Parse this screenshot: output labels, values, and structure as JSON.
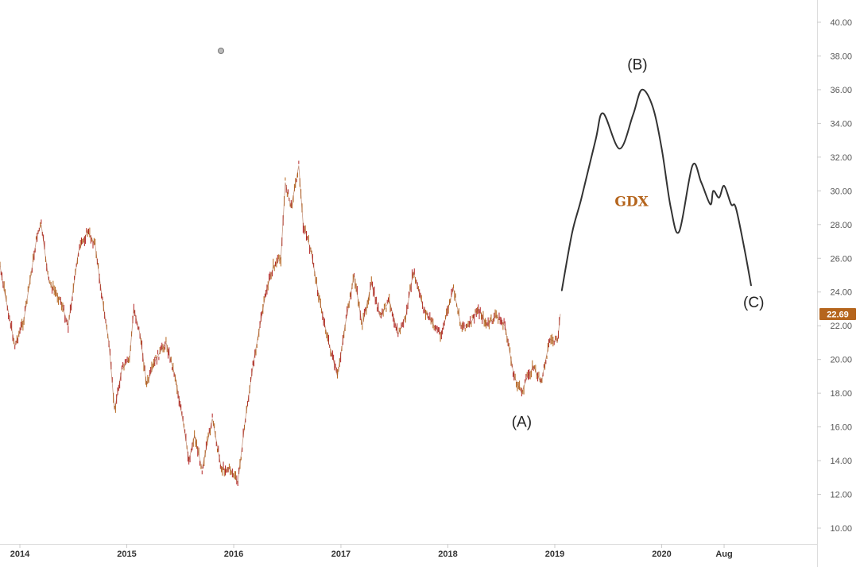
{
  "chart_data": {
    "type": "line",
    "symbol": "GDX",
    "y_axis": {
      "min": 10,
      "max": 40,
      "ticks": [
        "10.00",
        "12.00",
        "14.00",
        "16.00",
        "18.00",
        "20.00",
        "22.00",
        "24.00",
        "26.00",
        "28.00",
        "30.00",
        "32.00",
        "34.00",
        "36.00",
        "38.00",
        "40.00"
      ],
      "position": "right"
    },
    "x_axis": {
      "ticks": [
        {
          "label": "2014",
          "date": "2014-01-01"
        },
        {
          "label": "2015",
          "date": "2015-01-01"
        },
        {
          "label": "2016",
          "date": "2016-01-01"
        },
        {
          "label": "2017",
          "date": "2017-01-01"
        },
        {
          "label": "2018",
          "date": "2018-01-01"
        },
        {
          "label": "2019",
          "date": "2019-01-01"
        },
        {
          "label": "2020",
          "date": "2020-01-01"
        },
        {
          "label": "Aug",
          "date": "2020-08-01"
        }
      ]
    },
    "last_price": {
      "value": 22.69,
      "label": "22.69"
    },
    "grid": false,
    "series": [
      {
        "kind": "price",
        "color": "#b5651d",
        "points": [
          [
            "2013-10-15",
            26.8
          ],
          [
            "2013-11-01",
            24.8
          ],
          [
            "2013-12-15",
            20.8
          ],
          [
            "2014-01-15",
            22.4
          ],
          [
            "2014-03-01",
            27.4
          ],
          [
            "2014-03-15",
            28.0
          ],
          [
            "2014-04-10",
            24.6
          ],
          [
            "2014-05-20",
            23.5
          ],
          [
            "2014-06-15",
            22.0
          ],
          [
            "2014-07-20",
            26.4
          ],
          [
            "2014-08-20",
            27.6
          ],
          [
            "2014-09-15",
            26.8
          ],
          [
            "2014-10-10",
            23.5
          ],
          [
            "2014-11-01",
            21.0
          ],
          [
            "2014-11-20",
            17.0
          ],
          [
            "2014-12-15",
            19.4
          ],
          [
            "2015-01-10",
            20.0
          ],
          [
            "2015-01-25",
            23.0
          ],
          [
            "2015-02-15",
            21.5
          ],
          [
            "2015-03-10",
            18.5
          ],
          [
            "2015-04-10",
            20.0
          ],
          [
            "2015-05-15",
            21.0
          ],
          [
            "2015-06-15",
            19.0
          ],
          [
            "2015-07-15",
            16.0
          ],
          [
            "2015-08-01",
            14.0
          ],
          [
            "2015-08-20",
            15.5
          ],
          [
            "2015-09-15",
            13.5
          ],
          [
            "2015-10-20",
            16.5
          ],
          [
            "2015-11-20",
            13.5
          ],
          [
            "2015-12-20",
            13.5
          ],
          [
            "2016-01-15",
            12.7
          ],
          [
            "2016-02-10",
            16.5
          ],
          [
            "2016-03-10",
            20.0
          ],
          [
            "2016-04-20",
            24.0
          ],
          [
            "2016-05-15",
            25.5
          ],
          [
            "2016-06-10",
            26.0
          ],
          [
            "2016-06-25",
            30.5
          ],
          [
            "2016-07-15",
            29.0
          ],
          [
            "2016-08-10",
            31.5
          ],
          [
            "2016-08-25",
            28.0
          ],
          [
            "2016-09-20",
            26.5
          ],
          [
            "2016-10-20",
            23.5
          ],
          [
            "2016-11-20",
            21.0
          ],
          [
            "2016-12-20",
            19.0
          ],
          [
            "2017-01-15",
            22.0
          ],
          [
            "2017-02-15",
            25.0
          ],
          [
            "2017-03-15",
            22.0
          ],
          [
            "2017-04-15",
            24.5
          ],
          [
            "2017-05-15",
            22.5
          ],
          [
            "2017-06-15",
            23.5
          ],
          [
            "2017-07-15",
            21.5
          ],
          [
            "2017-08-10",
            22.5
          ],
          [
            "2017-09-05",
            25.2
          ],
          [
            "2017-10-10",
            23.0
          ],
          [
            "2017-11-15",
            22.0
          ],
          [
            "2017-12-10",
            21.5
          ],
          [
            "2018-01-20",
            24.2
          ],
          [
            "2018-02-15",
            22.0
          ],
          [
            "2018-03-15",
            22.0
          ],
          [
            "2018-04-15",
            23.0
          ],
          [
            "2018-05-15",
            22.0
          ],
          [
            "2018-06-15",
            22.6
          ],
          [
            "2018-07-15",
            22.0
          ],
          [
            "2018-08-15",
            19.0
          ],
          [
            "2018-09-10",
            18.0
          ],
          [
            "2018-09-25",
            18.8
          ],
          [
            "2018-10-20",
            19.6
          ],
          [
            "2018-11-15",
            18.6
          ],
          [
            "2018-12-15",
            21.2
          ],
          [
            "2019-01-10",
            21.0
          ],
          [
            "2019-01-20",
            22.7
          ]
        ]
      },
      {
        "kind": "projection",
        "color": "#333333",
        "points": [
          [
            "2019-01-25",
            24.1
          ],
          [
            "2019-03-01",
            27.5
          ],
          [
            "2019-04-01",
            29.5
          ],
          [
            "2019-05-20",
            33.0
          ],
          [
            "2019-06-15",
            34.6
          ],
          [
            "2019-08-10",
            32.5
          ],
          [
            "2019-09-25",
            34.5
          ],
          [
            "2019-10-25",
            36.0
          ],
          [
            "2019-12-01",
            35.0
          ],
          [
            "2020-01-01",
            32.5
          ],
          [
            "2020-02-01",
            29.0
          ],
          [
            "2020-03-01",
            27.6
          ],
          [
            "2020-04-15",
            31.5
          ],
          [
            "2020-05-15",
            30.5
          ],
          [
            "2020-06-15",
            29.2
          ],
          [
            "2020-06-25",
            30.0
          ],
          [
            "2020-07-15",
            29.6
          ],
          [
            "2020-08-01",
            30.3
          ],
          [
            "2020-08-25",
            29.2
          ],
          [
            "2020-09-10",
            29.0
          ],
          [
            "2020-10-10",
            26.5
          ],
          [
            "2020-11-01",
            24.4
          ]
        ]
      }
    ],
    "annotations": [
      {
        "text": "(A)",
        "date": "2018-09-10",
        "value": 16.0
      },
      {
        "text": "(B)",
        "date": "2019-10-10",
        "value": 37.2
      },
      {
        "text": "(C)",
        "date": "2020-11-10",
        "value": 23.1
      }
    ],
    "symbol_annotation": {
      "text": "GDX",
      "date": "2019-09-20",
      "value": 29.1,
      "color": "#b5651d"
    }
  }
}
